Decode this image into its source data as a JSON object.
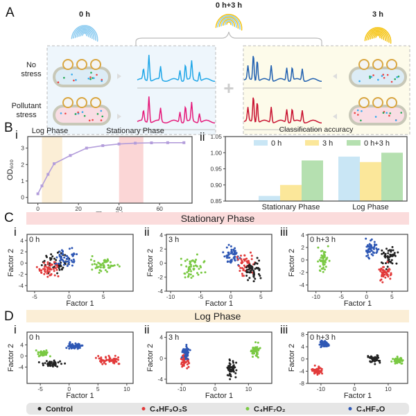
{
  "panel_a": {
    "label": "A",
    "time_0h": "0 h",
    "time_combined": "0 h+3 h",
    "time_3h": "3 h",
    "row_no_stress": [
      "No",
      "stress"
    ],
    "row_pollutant": [
      "Pollutant",
      "stress"
    ],
    "plus": "+",
    "colors": {
      "fp_0h": "#8ccbf0",
      "fp_3h": "#f5c518",
      "spec_no_0h": "#1ea6e8",
      "spec_pol_0h": "#e5197a",
      "spec_no_3h": "#1f5fb0",
      "spec_pol_3h": "#c8102e",
      "box_0h": "#eef6fc",
      "box_3h": "#fdfbea"
    }
  },
  "panel_b": {
    "label": "B",
    "sub_i": "i",
    "sub_ii": "ii"
  },
  "panel_c": {
    "label": "C",
    "banner": "Stationary Phase",
    "banner_color": "#fbdcdc",
    "subs": [
      "i",
      "ii",
      "iii"
    ]
  },
  "panel_d": {
    "label": "D",
    "banner": "Log Phase",
    "banner_color": "#fbeed6",
    "subs": [
      "i",
      "ii",
      "iii"
    ]
  },
  "legend": {
    "items": [
      {
        "label": "Control",
        "color": "#222222"
      },
      {
        "label": "C₄HF₉O₃S",
        "color": "#e23a3a"
      },
      {
        "label": "C₄HF₇O₂",
        "color": "#7ac943"
      },
      {
        "label": "C₄HF₉O",
        "color": "#2f58b5"
      }
    ]
  },
  "chart_data": [
    {
      "id": "growth",
      "type": "line",
      "xlabel": "Time (h)",
      "ylabel": "OD₆₀₀",
      "xlim": [
        -5,
        76
      ],
      "ylim": [
        -0.35,
        3.7
      ],
      "xticks": [
        0,
        20,
        40,
        60
      ],
      "yticks": [
        0,
        1,
        2,
        3
      ],
      "x": [
        0,
        2,
        5,
        8,
        16,
        24,
        32,
        40,
        48,
        56,
        64,
        72
      ],
      "y": [
        0.22,
        0.7,
        1.4,
        2.05,
        2.55,
        3.0,
        3.15,
        3.25,
        3.3,
        3.32,
        3.33,
        3.33
      ],
      "line_color": "#b39ddb",
      "regions": [
        {
          "label": "Log Phase",
          "from": 2,
          "to": 12,
          "color": "#fbeed6"
        },
        {
          "label": "Stationary Phase",
          "from": 40,
          "to": 52,
          "color": "#fbd6d6"
        }
      ]
    },
    {
      "id": "accuracy",
      "type": "bar",
      "title": "Classification accuracy",
      "categories": [
        "Stationary Phase",
        "Log Phase"
      ],
      "ylim": [
        0.85,
        1.05
      ],
      "yticks": [
        "0.85",
        "0.90",
        "0.95",
        "1.00",
        "1.05"
      ],
      "legend_placement": "top",
      "series": [
        {
          "name": "0 h",
          "values": [
            0.866,
            0.988
          ],
          "color": "#c9e6f5"
        },
        {
          "name": "3 h",
          "values": [
            0.9,
            0.971
          ],
          "color": "#fbe79a"
        },
        {
          "name": "0 h+3 h",
          "values": [
            0.976,
            1.0
          ],
          "color": "#b5e0b0"
        }
      ]
    },
    {
      "id": "c_i",
      "type": "scatter",
      "title": "0 h",
      "xlabel": "Factor 1",
      "ylabel": "Factor 2",
      "xlim": [
        -6.1,
        9.3
      ],
      "ylim": [
        -5,
        5.1
      ],
      "xticks": [
        -5,
        0,
        5
      ],
      "yticks": [
        -4,
        -2,
        0,
        2,
        4
      ],
      "clusters": [
        {
          "group": "Control",
          "center": [
            -2,
            0
          ],
          "spread": [
            1.3,
            1.1
          ]
        },
        {
          "group": "C₄HF₉O₃S",
          "center": [
            -3,
            -1
          ],
          "spread": [
            0.9,
            0.8
          ]
        },
        {
          "group": "C₄HF₉O",
          "center": [
            -0.5,
            1
          ],
          "spread": [
            1,
            1
          ]
        },
        {
          "group": "C₄HF₇O₂",
          "center": [
            5,
            -0.5
          ],
          "spread": [
            1.3,
            1
          ]
        }
      ]
    },
    {
      "id": "c_ii",
      "type": "scatter",
      "title": "3 h",
      "xlabel": "Factor 1",
      "ylabel": "Factor 2",
      "xlim": [
        -10.7,
        6.8
      ],
      "ylim": [
        -4,
        4.1
      ],
      "xticks": [
        -10,
        -5,
        0,
        5
      ],
      "yticks": [
        -4,
        -2,
        0,
        2,
        4
      ],
      "clusters": [
        {
          "group": "C₄HF₇O₂",
          "center": [
            -6.5,
            -0.5
          ],
          "spread": [
            1.2,
            1.1
          ]
        },
        {
          "group": "C₄HF₉O",
          "center": [
            0,
            1
          ],
          "spread": [
            1,
            0.9
          ]
        },
        {
          "group": "C₄HF₉O₃S",
          "center": [
            2.5,
            0
          ],
          "spread": [
            1,
            1
          ]
        },
        {
          "group": "Control",
          "center": [
            3.5,
            -1
          ],
          "spread": [
            1,
            1
          ]
        }
      ]
    },
    {
      "id": "c_iii",
      "type": "scatter",
      "title": "0 h+3 h",
      "xlabel": "Factor 1",
      "ylabel": "Factor 2",
      "xlim": [
        -11.6,
        8.1
      ],
      "ylim": [
        -5,
        4.1
      ],
      "xticks": [
        -10,
        -5,
        0,
        5
      ],
      "yticks": [
        -4,
        -2,
        0,
        2,
        4
      ],
      "clusters": [
        {
          "group": "C₄HF₇O₂",
          "center": [
            -8.5,
            0
          ],
          "spread": [
            0.8,
            1.3
          ]
        },
        {
          "group": "C₄HF₉O",
          "center": [
            1,
            1.8
          ],
          "spread": [
            1,
            0.9
          ]
        },
        {
          "group": "Control",
          "center": [
            4.5,
            0.5
          ],
          "spread": [
            1,
            1.1
          ]
        },
        {
          "group": "C₄HF₉O₃S",
          "center": [
            3.5,
            -2
          ],
          "spread": [
            1,
            0.9
          ]
        }
      ]
    },
    {
      "id": "d_i",
      "type": "scatter",
      "title": "0 h",
      "xlabel": "Factor 1",
      "ylabel": "Factor 2",
      "xlim": [
        -7.3,
        11.1
      ],
      "ylim": [
        -9.9,
        8.6
      ],
      "xticks": [
        -5,
        0,
        5,
        10
      ],
      "yticks": [
        -4,
        0,
        4
      ],
      "clusters": [
        {
          "group": "C₄HF₇O₂",
          "center": [
            -4.5,
            0.8
          ],
          "spread": [
            0.8,
            0.7
          ]
        },
        {
          "group": "C₄HF₉O",
          "center": [
            1,
            3.5
          ],
          "spread": [
            0.9,
            0.8
          ]
        },
        {
          "group": "Control",
          "center": [
            -3,
            -2.8
          ],
          "spread": [
            1.2,
            0.7
          ]
        },
        {
          "group": "C₄HF₉O₃S",
          "center": [
            7,
            -1.5
          ],
          "spread": [
            1.5,
            1
          ]
        }
      ]
    },
    {
      "id": "d_ii",
      "type": "scatter",
      "title": "3 h",
      "xlabel": "Factor 1",
      "ylabel": "Factor 2",
      "xlim": [
        -14.6,
        17
      ],
      "ylim": [
        -4.8,
        5
      ],
      "xticks": [
        -10,
        0,
        10
      ],
      "yticks": [
        -4,
        0,
        4
      ],
      "clusters": [
        {
          "group": "C₄HF₉O₃S",
          "center": [
            -9,
            -0.5
          ],
          "spread": [
            0.8,
            0.9
          ]
        },
        {
          "group": "C₄HF₉O",
          "center": [
            -8.8,
            1
          ],
          "spread": [
            0.8,
            1
          ]
        },
        {
          "group": "Control",
          "center": [
            5,
            -2
          ],
          "spread": [
            1,
            1.1
          ]
        },
        {
          "group": "C₄HF₇O₂",
          "center": [
            12,
            1.5
          ],
          "spread": [
            1,
            1.1
          ]
        }
      ]
    },
    {
      "id": "d_iii",
      "type": "scatter",
      "title": "0 h+3 h",
      "xlabel": "Factor 1",
      "ylabel": "Factor 2",
      "xlim": [
        -13.9,
        15.8
      ],
      "ylim": [
        -8,
        8.8
      ],
      "xticks": [
        -10,
        0,
        10
      ],
      "yticks": [
        -8,
        -4,
        0,
        4,
        8
      ],
      "clusters": [
        {
          "group": "C₄HF₉O",
          "center": [
            -9,
            5
          ],
          "spread": [
            1,
            0.8
          ]
        },
        {
          "group": "C₄HF₉O₃S",
          "center": [
            -11,
            -4
          ],
          "spread": [
            1,
            1
          ]
        },
        {
          "group": "Control",
          "center": [
            6,
            0
          ],
          "spread": [
            1.2,
            0.9
          ]
        },
        {
          "group": "C₄HF₇O₂",
          "center": [
            13,
            -0.5
          ],
          "spread": [
            1.2,
            0.8
          ]
        }
      ]
    }
  ]
}
